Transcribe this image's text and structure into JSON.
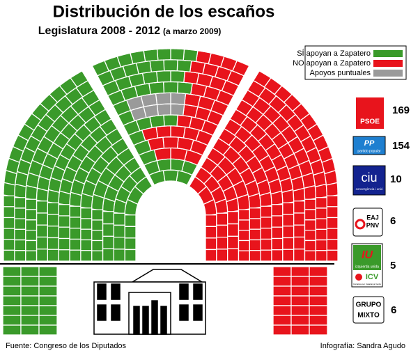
{
  "header": {
    "title": "Distribución de los escaños",
    "subtitle": "Legislatura 2008 - 2012",
    "subtitle_note": "(a marzo 2009)"
  },
  "legend": [
    "SÍ apoyan a Zapatero",
    "NO apoyan a Zapatero",
    "Apoyos puntuales"
  ],
  "parties": [
    {
      "logo": [
        "PSOE"
      ],
      "seats": 169
    },
    {
      "logo": [
        "PP",
        "partido popular"
      ],
      "seats": 154
    },
    {
      "logo": [
        "ciu",
        "convergència i unió"
      ],
      "seats": 10
    },
    {
      "logo": [
        "EAJ",
        "PNV"
      ],
      "seats": 6
    },
    {
      "logo": [
        "IU",
        "izquierda unida",
        "ICV",
        "Iniciativa per Catalunya Verds"
      ],
      "seats": 5
    },
    {
      "logo": [
        "GRUPO",
        "MIXTO"
      ],
      "seats": 6
    }
  ],
  "footer": {
    "source": "Fuente:  Congreso de los Diputados",
    "credit": "Infografía:  Sandra Agudo"
  }
}
